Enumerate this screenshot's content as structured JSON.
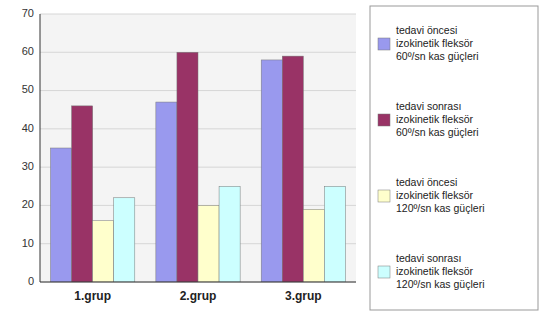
{
  "chart_data": {
    "type": "bar",
    "categories": [
      "1.grup",
      "2.grup",
      "3.grup"
    ],
    "series": [
      {
        "name": "tedavi öncesi\nizokinetik fleksör\n60º/sn kas güçleri",
        "color": "#9999EE",
        "values": [
          35,
          47,
          58
        ]
      },
      {
        "name": "tedavi sonrası\nizokinetik fleksör\n60º/sn kas güçleri",
        "color": "#993366",
        "values": [
          46,
          60,
          59
        ]
      },
      {
        "name": "tedavi öncesi\nizokinetik fleksör\n120º/sn kas güçleri",
        "color": "#FFFFCC",
        "values": [
          16,
          20,
          19
        ]
      },
      {
        "name": "tedavi sonrası\nizokinetik fleksör\n120º/sn kas güçleri",
        "color": "#CCFFFF",
        "values": [
          22,
          25,
          25
        ]
      }
    ],
    "ylim": [
      0,
      70
    ],
    "yticks": [
      0,
      10,
      20,
      30,
      40,
      50,
      60,
      70
    ],
    "grid": true,
    "legend": "right"
  }
}
